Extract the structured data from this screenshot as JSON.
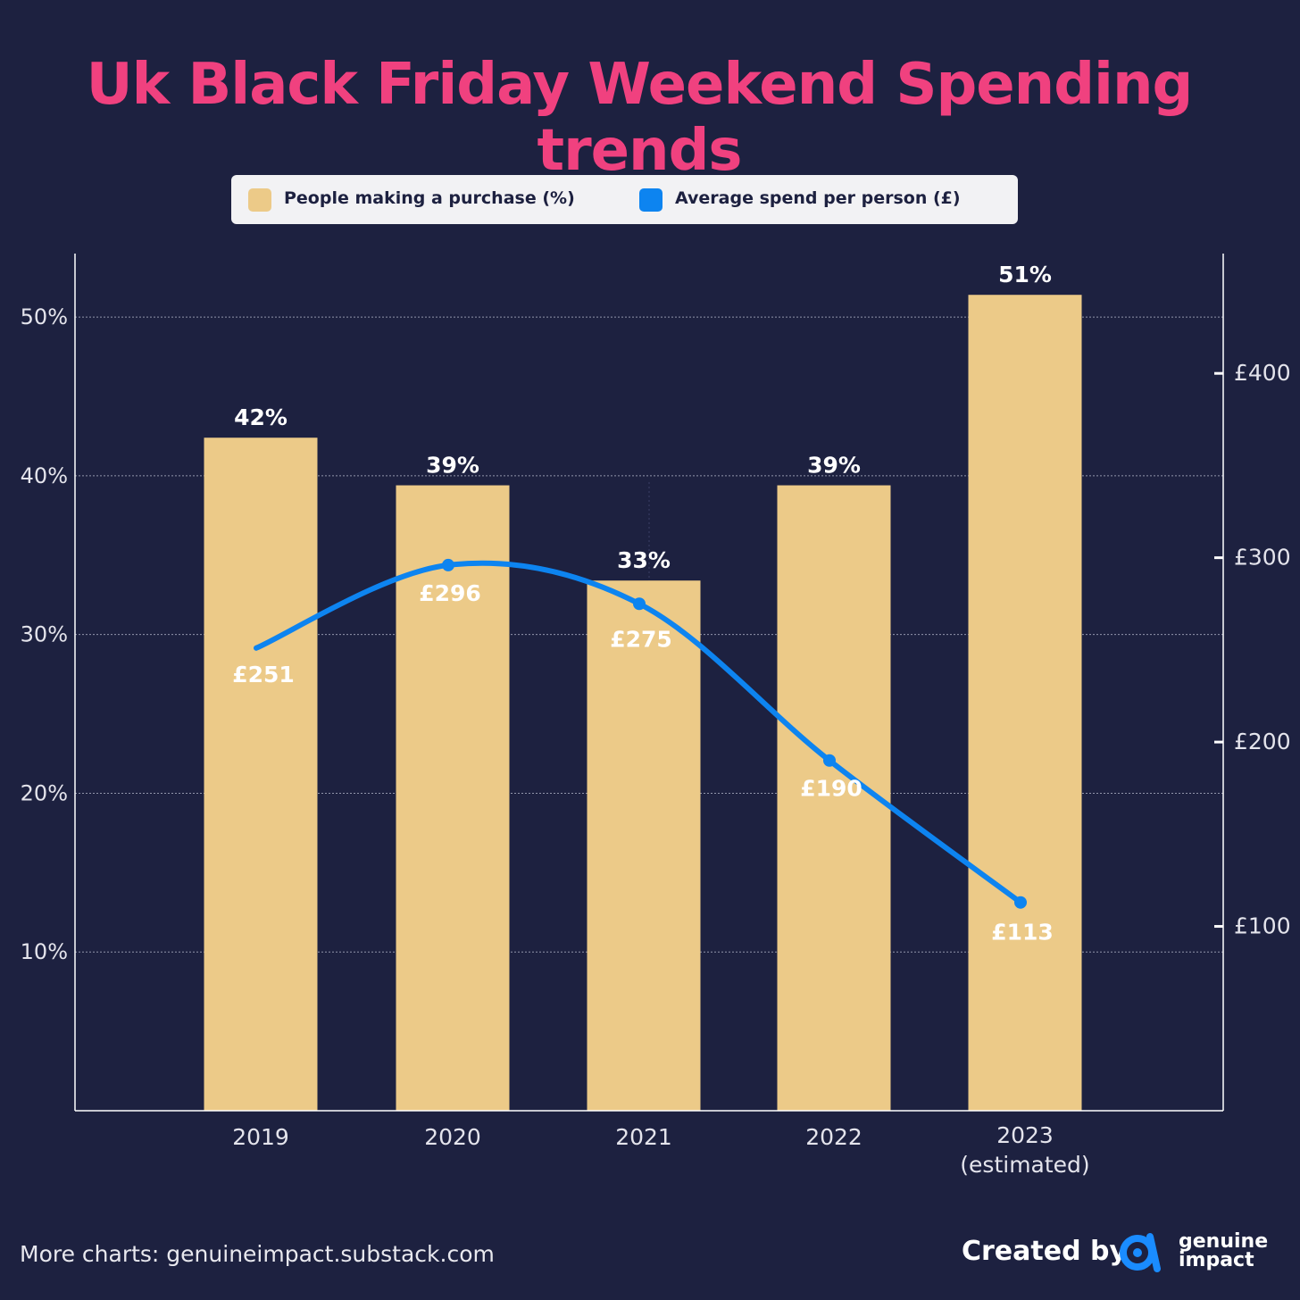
{
  "chart_data": {
    "type": "bar",
    "title": "Uk Black Friday Weekend Spending trends",
    "categories": [
      "2019",
      "2020",
      "2021",
      "2022",
      "2023"
    ],
    "category_sublabels": [
      "",
      "",
      "",
      "",
      "(estimated)"
    ],
    "series": [
      {
        "name": "People making a purchase (%)",
        "type": "bar",
        "axis": "left",
        "values": [
          42.4,
          39.4,
          33.4,
          39.4,
          51.4
        ],
        "labels": [
          "42%",
          "39%",
          "33%",
          "39%",
          "51%"
        ],
        "color": "#ecca88"
      },
      {
        "name": "Average spend per person (£)",
        "type": "line",
        "axis": "right",
        "values": [
          251,
          296,
          275,
          190,
          113
        ],
        "labels": [
          "£251",
          "£296",
          "£275",
          "£190",
          "£113"
        ],
        "color": "#0d84f0"
      }
    ],
    "y_left": {
      "ylim": [
        0,
        54
      ],
      "ticks": [
        10,
        20,
        30,
        40,
        50
      ],
      "tick_labels": [
        "10%",
        "20%",
        "30%",
        "40%",
        "50%"
      ]
    },
    "y_right": {
      "ylim": [
        0,
        465
      ],
      "ticks": [
        100,
        200,
        300,
        400
      ],
      "tick_labels": [
        "£100",
        "£200",
        "£300",
        "£400"
      ]
    },
    "grid": true,
    "legend": "top"
  },
  "footer": {
    "more_charts": "More charts: genuineimpact.substack.com",
    "created_by": "Created by",
    "brand_line1": "genuine",
    "brand_line2": "impact"
  },
  "colors": {
    "background": "#1d2140",
    "title": "#f0417f",
    "bar": "#ecca88",
    "line": "#0d84f0",
    "legend_bg": "#f2f2f4"
  }
}
